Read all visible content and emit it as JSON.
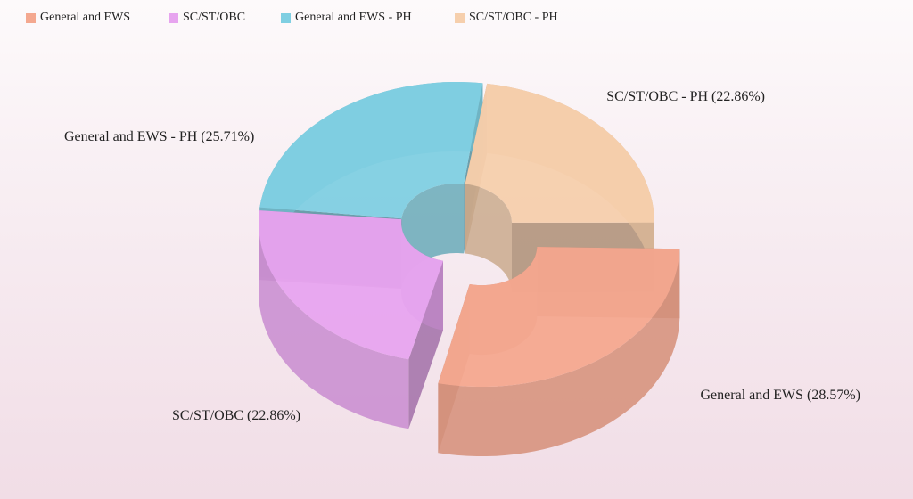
{
  "chart_data": {
    "type": "pie",
    "variant": "3d-doughnut",
    "title": "",
    "exploded": "General and EWS",
    "legend_position": "top-left",
    "slices": [
      {
        "name": "General and EWS",
        "value": 28.57,
        "label": "General and EWS (28.57%)",
        "color": "#f4a88f"
      },
      {
        "name": "SC/ST/OBC",
        "value": 22.86,
        "label": "SC/ST/OBC (22.86%)",
        "color": "#e7a4ef"
      },
      {
        "name": "General and EWS - PH",
        "value": 25.71,
        "label": "General and EWS - PH (25.71%)",
        "color": "#7fcfe2"
      },
      {
        "name": "SC/ST/OBC - PH",
        "value": 22.86,
        "label": "SC/ST/OBC - PH (22.86%)",
        "color": "#f6cfac"
      }
    ]
  },
  "legend": {
    "items": [
      {
        "label": "General and EWS",
        "color": "#f4a88f"
      },
      {
        "label": "SC/ST/OBC",
        "color": "#e7a4ef"
      },
      {
        "label": "General and EWS - PH",
        "color": "#7fcfe2"
      },
      {
        "label": "SC/ST/OBC - PH",
        "color": "#f6cfac"
      }
    ]
  }
}
